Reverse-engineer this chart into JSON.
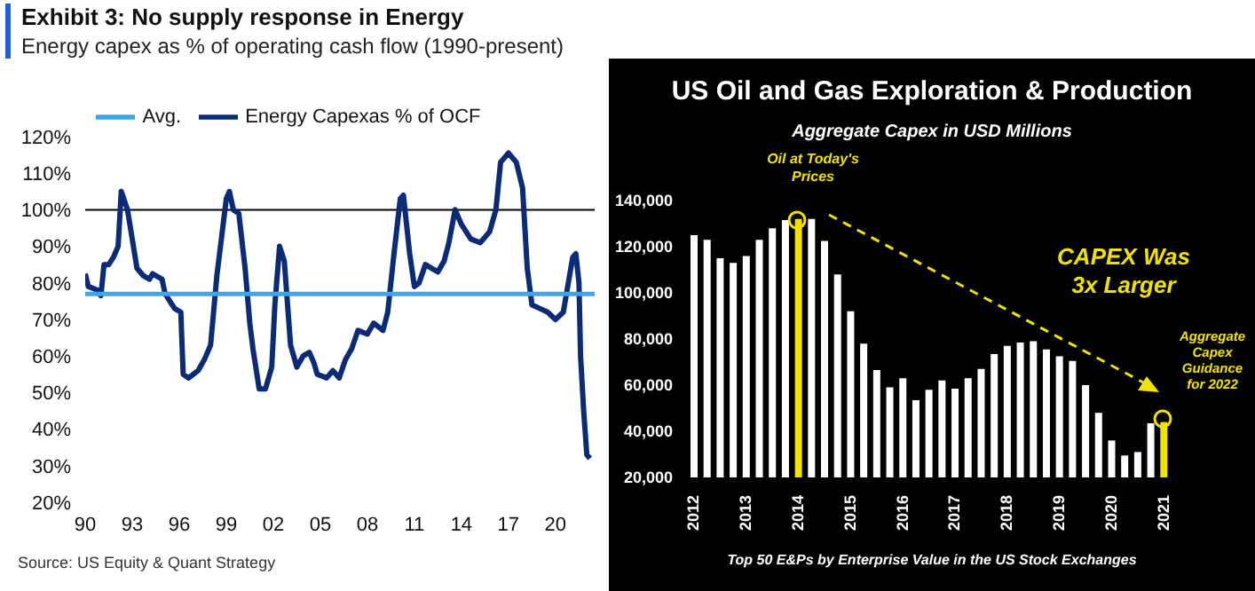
{
  "chart_data": [
    {
      "type": "line",
      "title": "Exhibit 3: No supply response in Energy",
      "subtitle": "Energy capex as % of operating cash flow (1990-present)",
      "legend": "top",
      "grid": false,
      "xlim": [
        1990,
        2022.5
      ],
      "xticks": [
        {
          "value": 1990,
          "label": "90"
        },
        {
          "value": 1993,
          "label": "93"
        },
        {
          "value": 1996,
          "label": "96"
        },
        {
          "value": 1999,
          "label": "99"
        },
        {
          "value": 2002,
          "label": "02"
        },
        {
          "value": 2005,
          "label": "05"
        },
        {
          "value": 2008,
          "label": "08"
        },
        {
          "value": 2011,
          "label": "11"
        },
        {
          "value": 2014,
          "label": "14"
        },
        {
          "value": 2017,
          "label": "17"
        },
        {
          "value": 2020,
          "label": "20"
        }
      ],
      "ylim": [
        20,
        120
      ],
      "yticks": [
        {
          "value": 20,
          "label": "20%"
        },
        {
          "value": 30,
          "label": "30%"
        },
        {
          "value": 40,
          "label": "40%"
        },
        {
          "value": 50,
          "label": "50%"
        },
        {
          "value": 60,
          "label": "60%"
        },
        {
          "value": 70,
          "label": "70%"
        },
        {
          "value": 80,
          "label": "80%"
        },
        {
          "value": 90,
          "label": "90%"
        },
        {
          "value": 100,
          "label": "100%"
        },
        {
          "value": 110,
          "label": "110%"
        },
        {
          "value": 120,
          "label": "120%"
        }
      ],
      "ref_lines": [
        {
          "axis": "y",
          "value": 100,
          "color": "#000000"
        }
      ],
      "series": [
        {
          "name": "Energy Capexas % of OCF",
          "color": "#0b2a78",
          "x": [
            1990,
            1990.2,
            1990.8,
            1991,
            1991.2,
            1991.5,
            1991.8,
            1992.1,
            1992.3,
            1992.7,
            1993.3,
            1993.7,
            1994.1,
            1994.3,
            1994.9,
            1995.1,
            1995.7,
            1996.1,
            1996.25,
            1996.6,
            1997.2,
            1997.6,
            1998,
            1998.4,
            1999,
            1999.2,
            1999.45,
            1999.8,
            2000.2,
            2000.5,
            2000.7,
            2001.1,
            2001.5,
            2001.9,
            2002.1,
            2002.4,
            2002.7,
            2003.1,
            2003.5,
            2003.9,
            2004.3,
            2004.6,
            2004.8,
            2005.4,
            2005.8,
            2006.2,
            2006.6,
            2007,
            2007.4,
            2008,
            2008.4,
            2009,
            2009.3,
            2009.7,
            2010.1,
            2010.3,
            2010.7,
            2011,
            2011.3,
            2011.7,
            2012.1,
            2012.5,
            2012.9,
            2013.2,
            2013.6,
            2014,
            2014.6,
            2015.2,
            2015.8,
            2016.2,
            2016.5,
            2017,
            2017.5,
            2017.9,
            2018.2,
            2018.5,
            2019,
            2019.5,
            2020,
            2020.5,
            2020.9,
            2021.1,
            2021.3,
            2021.5,
            2021.6,
            2021.8,
            2022,
            2022.2
          ],
          "values": [
            82.5,
            79,
            78,
            76.5,
            85,
            85,
            87,
            90,
            105,
            100,
            84,
            82,
            81,
            82.5,
            81,
            77,
            73,
            72,
            55,
            54,
            56,
            59,
            63,
            82,
            103,
            105,
            100,
            99,
            84,
            69,
            62,
            51,
            51,
            57,
            74,
            90,
            86,
            63,
            57,
            60,
            61,
            58,
            55,
            54,
            56,
            54,
            59,
            62,
            67,
            66,
            69,
            67,
            72,
            88,
            103,
            104,
            88,
            79,
            80,
            85,
            84,
            83,
            86,
            91,
            100,
            96,
            92,
            91,
            94,
            100,
            113,
            115.5,
            113,
            106,
            84,
            74,
            73,
            72,
            70,
            72,
            82,
            87,
            88,
            80,
            60,
            45,
            33,
            32
          ]
        },
        {
          "name": "Avg.",
          "color": "#3ea6e8",
          "x": [
            1990,
            2022.5
          ],
          "values": [
            77,
            77
          ]
        }
      ],
      "annotations": [
        "Source: US Equity & Quant Strategy"
      ]
    },
    {
      "type": "bar",
      "title": "US Oil and Gas Exploration & Production",
      "subtitle": "Aggregate Capex in USD Millions",
      "xlabel": "Top 50 E&Ps by Enterprise Value in the US Stock Exchanges",
      "grid": false,
      "categories": [
        "2012",
        null,
        null,
        null,
        "2013",
        null,
        null,
        null,
        "2014",
        null,
        null,
        null,
        "2015",
        null,
        null,
        null,
        "2016",
        null,
        null,
        null,
        "2017",
        null,
        null,
        null,
        "2018",
        null,
        null,
        null,
        "2019",
        null,
        null,
        null,
        "2020",
        null,
        null,
        null,
        "2021"
      ],
      "values": [
        125000,
        123000,
        115000,
        113000,
        116000,
        123000,
        128000,
        131500,
        132000,
        132000,
        122500,
        108000,
        92000,
        78000,
        66500,
        59000,
        63000,
        53500,
        58000,
        62000,
        58500,
        63000,
        67000,
        73500,
        77000,
        78500,
        79000,
        75500,
        72500,
        70500,
        60000,
        48000,
        36000,
        29500,
        31000,
        43500,
        44000
      ],
      "colors": [
        "#ffffff",
        "#ffffff",
        "#ffffff",
        "#ffffff",
        "#ffffff",
        "#ffffff",
        "#ffffff",
        "#ffffff",
        "#f2e200",
        "#ffffff",
        "#ffffff",
        "#ffffff",
        "#ffffff",
        "#ffffff",
        "#ffffff",
        "#ffffff",
        "#ffffff",
        "#ffffff",
        "#ffffff",
        "#ffffff",
        "#ffffff",
        "#ffffff",
        "#ffffff",
        "#ffffff",
        "#ffffff",
        "#ffffff",
        "#ffffff",
        "#ffffff",
        "#ffffff",
        "#ffffff",
        "#ffffff",
        "#ffffff",
        "#ffffff",
        "#ffffff",
        "#ffffff",
        "#ffffff",
        "#f2e200"
      ],
      "ylim": [
        20000,
        140000
      ],
      "yticks": [
        {
          "value": 20000,
          "label": "20,000"
        },
        {
          "value": 40000,
          "label": "40,000"
        },
        {
          "value": 60000,
          "label": "60,000"
        },
        {
          "value": 80000,
          "label": "80,000"
        },
        {
          "value": 100000,
          "label": "100,000"
        },
        {
          "value": 120000,
          "label": "120,000"
        },
        {
          "value": 140000,
          "label": "140,000"
        }
      ],
      "annotations": [
        "Oil at Today's Prices",
        "CAPEX Was 3x Larger",
        "Aggregate Capex Guidance for 2022"
      ]
    }
  ]
}
